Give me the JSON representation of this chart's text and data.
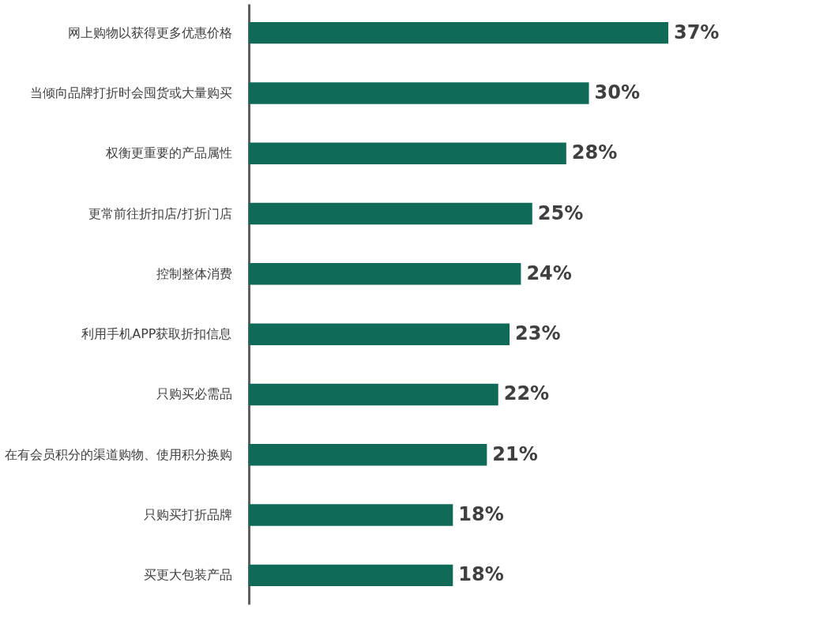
{
  "chart_data": {
    "type": "bar",
    "orientation": "horizontal",
    "categories": [
      "网上购物以获得更多优惠价格",
      "当倾向品牌打折时会囤货或大量购买",
      "权衡更重要的产品属性",
      "更常前往折扣店/打折门店",
      "控制整体消费",
      "利用手机APP获取折扣信息",
      "只购买必需品",
      "在有会员积分的渠道购物、使用积分换购",
      "只购买打折品牌",
      "买更大包装产品"
    ],
    "values": [
      37,
      30,
      28,
      25,
      24,
      23,
      22,
      21,
      18,
      18
    ],
    "value_labels": [
      "37%",
      "30%",
      "28%",
      "25%",
      "24%",
      "23%",
      "22%",
      "21%",
      "18%",
      "18%"
    ],
    "color": "#0f6b58",
    "tick_labels": "y"
  }
}
